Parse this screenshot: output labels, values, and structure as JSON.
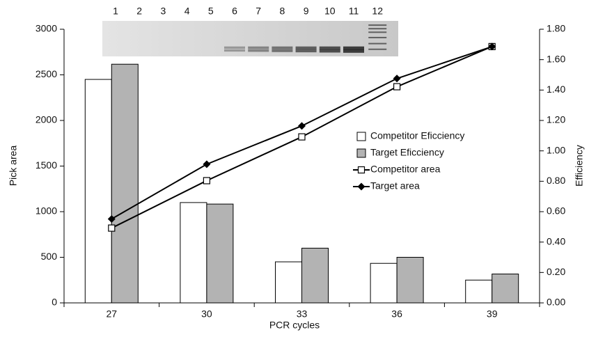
{
  "chart_data": {
    "type": "bar-line",
    "x_label": "PCR cycles",
    "y_label": "Pick area",
    "y2_label": "Efficiency",
    "gel_lanes": [
      "1",
      "2",
      "3",
      "4",
      "5",
      "6",
      "7",
      "8",
      "9",
      "10",
      "11",
      "12"
    ],
    "categories": [
      "27",
      "30",
      "33",
      "36",
      "39"
    ],
    "series": [
      {
        "name": "Competitor Eficciency",
        "type": "bar",
        "axis": "y2",
        "color": "#ffffff",
        "values": [
          1.47,
          0.66,
          0.27,
          0.26,
          0.15
        ]
      },
      {
        "name": "Target Eficciency",
        "type": "bar",
        "axis": "y2",
        "color": "#b3b3b3",
        "values": [
          1.57,
          0.65,
          0.36,
          0.3,
          0.19
        ]
      },
      {
        "name": "Competitor area",
        "type": "line",
        "marker": "square",
        "color": "#000000",
        "values": [
          820,
          1340,
          1820,
          2370,
          2810
        ]
      },
      {
        "name": "Target area",
        "type": "line",
        "marker": "diamond",
        "color": "#000000",
        "values": [
          920,
          1520,
          1940,
          2460,
          2810
        ]
      }
    ],
    "ylim": [
      0,
      3000
    ],
    "yticks": [
      0,
      500,
      1000,
      1500,
      2000,
      2500,
      3000
    ],
    "y2lim": [
      0,
      1.8
    ],
    "y2ticks": [
      {
        "value": 0,
        "label": "0.00"
      },
      {
        "value": 0.2,
        "label": "0.20"
      },
      {
        "value": 0.4,
        "label": "0.40"
      },
      {
        "value": 0.6,
        "label": "0.60"
      },
      {
        "value": 0.8,
        "label": "0.80"
      },
      {
        "value": 1.0,
        "label": "1.00"
      },
      {
        "value": 1.2,
        "label": "1.20"
      },
      {
        "value": 1.4,
        "label": "1.40"
      },
      {
        "value": 1.6,
        "label": "1.60"
      },
      {
        "value": 1.8,
        "label": "1.80"
      }
    ]
  }
}
